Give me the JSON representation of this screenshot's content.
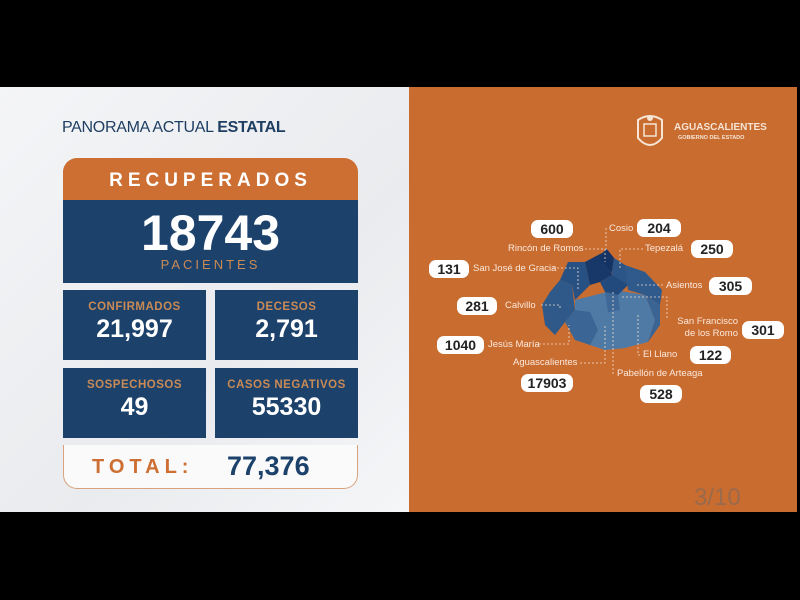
{
  "header": {
    "title_light": "PANORAMA ACTUAL ",
    "title_bold": "ESTATAL"
  },
  "recuperados": {
    "label": "RECUPERADOS",
    "value": "18743",
    "unit": "PACIENTES"
  },
  "cards": [
    {
      "label": "CONFIRMADOS",
      "value": "21,997"
    },
    {
      "label": "DECESOS",
      "value": "2,791"
    },
    {
      "label": "SOSPECHOSOS",
      "value": "49"
    },
    {
      "label": "CASOS NEGATIVOS",
      "value": "55330"
    }
  ],
  "total": {
    "label": "TOTAL:",
    "value": "77,376"
  },
  "logo": {
    "name": "AGUASCALIENTES",
    "sub": "GOBIERNO DEL ESTADO"
  },
  "municipios": [
    {
      "name": "Rincón de Romos",
      "value": "600"
    },
    {
      "name": "Cosio",
      "value": "204"
    },
    {
      "name": "Tepezalá",
      "value": "250"
    },
    {
      "name": "San José de Gracia",
      "value": "131"
    },
    {
      "name": "Asientos",
      "value": "305"
    },
    {
      "name": "Calvillo",
      "value": "281"
    },
    {
      "name": "San Francisco de los Romo",
      "value": "301"
    },
    {
      "name": "Jesús María",
      "value": "1040"
    },
    {
      "name": "El Llano",
      "value": "122"
    },
    {
      "name": "Aguascalientes",
      "value": "17903"
    },
    {
      "name": "Pabellón de Arteaga",
      "value": "528"
    }
  ],
  "pagination": "3/10",
  "colors": {
    "orange": "#cd6f32",
    "navy": "#1c426c",
    "panel": "#c96c30"
  }
}
